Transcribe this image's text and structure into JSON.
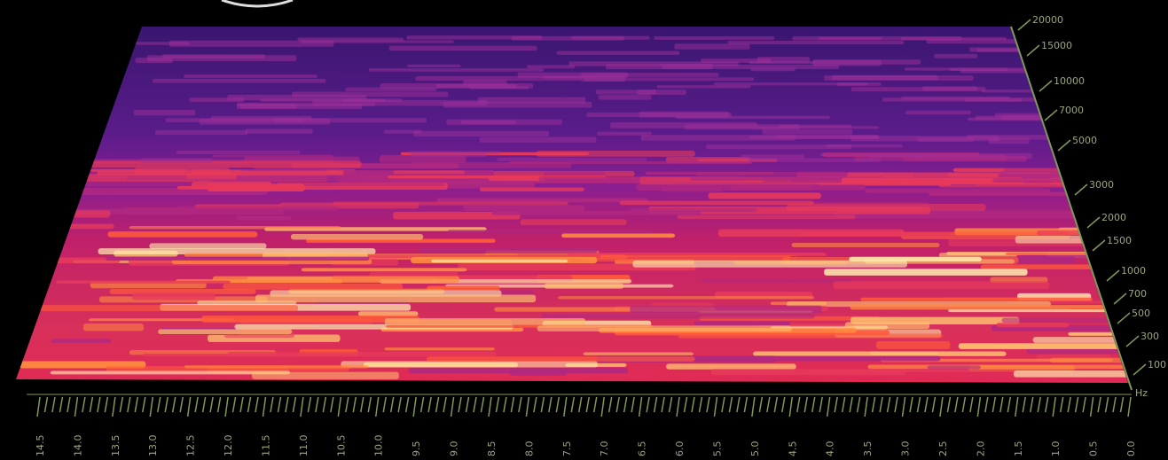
{
  "frequency_axis": {
    "labels": [
      "20000",
      "15000",
      "10000",
      "7000",
      "5000",
      "3000",
      "2000",
      "1500",
      "1000",
      "700",
      "500",
      "300",
      "100"
    ],
    "unit": "Hz"
  },
  "time_axis": {
    "labels": [
      "14.5",
      "14.0",
      "13.5",
      "13.0",
      "12.5",
      "12.0",
      "11.5",
      "11.0",
      "10.5",
      "10.0",
      "9.5",
      "9.0",
      "8.5",
      "8.0",
      "7.5",
      "7.0",
      "6.5",
      "6.0",
      "5.5",
      "5.0",
      "4.5",
      "4.0",
      "3.5",
      "3.0",
      "2.5",
      "2.0",
      "1.5",
      "1.0",
      "0.5",
      "0.0"
    ]
  }
}
